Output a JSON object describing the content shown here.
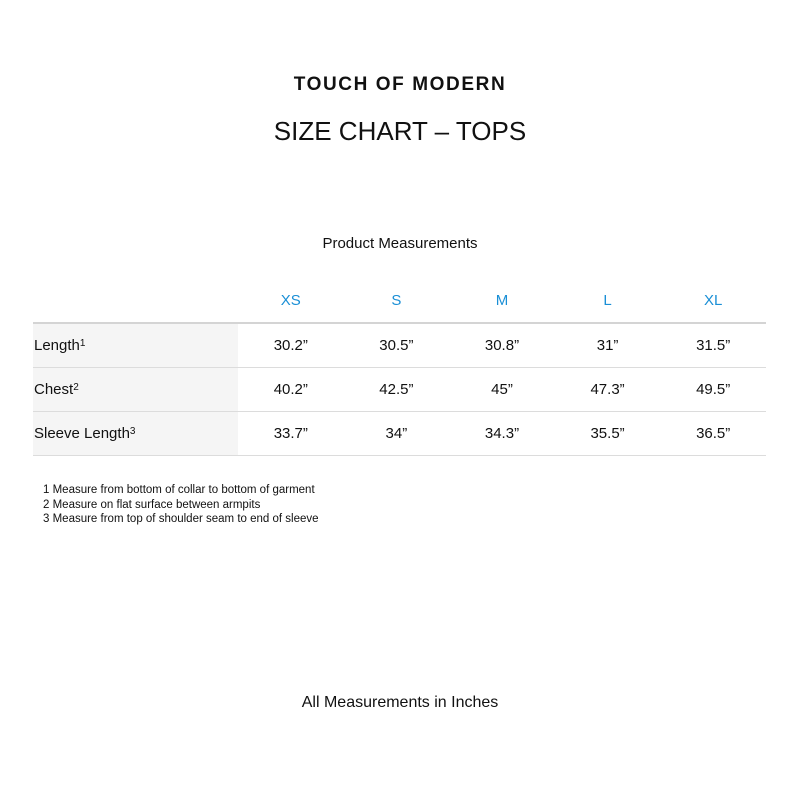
{
  "brand": "TOUCH OF MODERN",
  "title": "SIZE CHART – TOPS",
  "subtitle": "Product Measurements",
  "table": {
    "sizes": [
      "XS",
      "S",
      "M",
      "L",
      "XL"
    ],
    "rows": [
      {
        "label": "Length",
        "note": "1",
        "values": [
          "30.2”",
          "30.5”",
          "30.8”",
          "31”",
          "31.5”"
        ]
      },
      {
        "label": "Chest",
        "note": "2",
        "values": [
          "40.2”",
          "42.5”",
          "45”",
          "47.3”",
          "49.5”"
        ]
      },
      {
        "label": "Sleeve Length",
        "note": "3",
        "values": [
          "33.7”",
          "34”",
          "34.3”",
          "35.5”",
          "36.5”"
        ]
      }
    ]
  },
  "notes": [
    "1 Measure from bottom of collar to bottom of garment",
    "2 Measure on flat surface between armpits",
    "3 Measure from top of shoulder seam to end of sleeve"
  ],
  "footer": "All Measurements in Inches",
  "colors": {
    "size_header": "#1a8fd6",
    "label_bg": "#f5f5f5"
  }
}
